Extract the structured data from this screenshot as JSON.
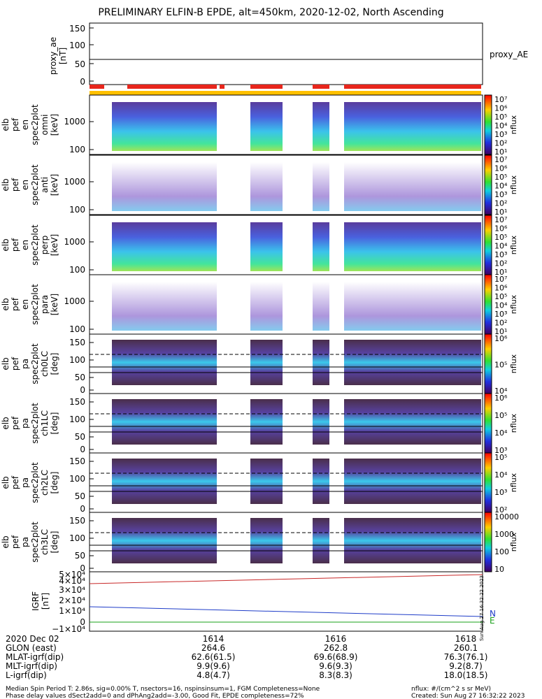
{
  "title": "PRELIMINARY ELFIN-B EPDE, alt=450km, 2020-12-02, North Ascending",
  "colors": {
    "frame": "#000000",
    "red_bar": "#e8261c",
    "yellow_bar": "#ffc000",
    "N_line": "#1e3cc8",
    "E_line": "#1aa01a",
    "R_line": "#c82828",
    "white": "#ffffff"
  },
  "proxy_ae": {
    "ylabel": "proxy_ae\n[nT]",
    "yticks": [
      "150",
      "100",
      "50",
      "0"
    ],
    "legend": "proxy_AE",
    "value": 60
  },
  "panels": [
    {
      "ylabel_lines": [
        "elb",
        "pef",
        "en",
        "spec2plot",
        "omni",
        "[keV]"
      ],
      "yticks": [
        "1000",
        "100"
      ],
      "cbar_ticks": [
        "10⁷",
        "10⁶",
        "10⁵",
        "10⁴",
        "10³",
        "10²",
        "10¹"
      ],
      "cbar_label": "nflux"
    },
    {
      "ylabel_lines": [
        "elb",
        "pef",
        "en",
        "spec2plot",
        "anti",
        "[keV]"
      ],
      "yticks": [
        "1000",
        "100"
      ],
      "cbar_ticks": [
        "10⁷",
        "10⁶",
        "10⁵",
        "10⁴",
        "10³",
        "10²",
        "10¹"
      ],
      "cbar_label": "nflux"
    },
    {
      "ylabel_lines": [
        "elb",
        "pef",
        "en",
        "spec2plot",
        "perp",
        "[keV]"
      ],
      "yticks": [
        "1000",
        "100"
      ],
      "cbar_ticks": [
        "10⁷",
        "10⁶",
        "10⁵",
        "10⁴",
        "10³",
        "10²",
        "10¹"
      ],
      "cbar_label": "nflux"
    },
    {
      "ylabel_lines": [
        "elb",
        "pef",
        "en",
        "spec2plot",
        "para",
        "[keV]"
      ],
      "yticks": [
        "1000",
        "100"
      ],
      "cbar_ticks": [
        "10⁷",
        "10⁶",
        "10⁵",
        "10⁴",
        "10³",
        "10²",
        "10¹"
      ],
      "cbar_label": "nflux"
    },
    {
      "ylabel_lines": [
        "elb",
        "pef",
        "pa",
        "spec2plot",
        "ch0LC",
        "[deg]"
      ],
      "yticks": [
        "150",
        "100",
        "50",
        "0"
      ],
      "cbar_ticks": [
        "10⁶",
        "10⁵",
        "10⁴"
      ],
      "cbar_label": "nflux"
    },
    {
      "ylabel_lines": [
        "elb",
        "pef",
        "pa",
        "spec2plot",
        "ch1LC",
        "[deg]"
      ],
      "yticks": [
        "150",
        "100",
        "50",
        "0"
      ],
      "cbar_ticks": [
        "10⁶",
        "10⁵",
        "10⁴",
        "10³"
      ],
      "cbar_label": "nflux"
    },
    {
      "ylabel_lines": [
        "elb",
        "pef",
        "pa",
        "spec2plot",
        "ch2LC",
        "[deg]"
      ],
      "yticks": [
        "150",
        "100",
        "50",
        "0"
      ],
      "cbar_ticks": [
        "10⁵",
        "10⁴",
        "10³",
        "10²"
      ],
      "cbar_label": "nflux"
    },
    {
      "ylabel_lines": [
        "elb",
        "pef",
        "pa",
        "spec2plot",
        "ch3LC",
        "[deg]"
      ],
      "yticks": [
        "150",
        "100",
        "50",
        "0"
      ],
      "cbar_ticks": [
        "10000",
        "1000",
        "100",
        "10"
      ],
      "cbar_label": "nflux"
    }
  ],
  "igrf": {
    "ylabel": "IGRF\n[nT]",
    "yticks": [
      "5×10⁴",
      "4×10⁴",
      "3×10⁴",
      "2×10⁴",
      "1×10⁴",
      "0",
      "−1×10⁴"
    ],
    "legend": [
      "N",
      "E"
    ]
  },
  "footer": {
    "rows": [
      {
        "label": "2020 Dec 02",
        "v1": "1614",
        "v2": "1616",
        "v3": "1618"
      },
      {
        "label": "GLON (east)",
        "v1": "264.6",
        "v2": "262.8",
        "v3": "260.1"
      },
      {
        "label": "MLAT-igrf(dip)",
        "v1": "62.6(61.5)",
        "v2": "69.6(68.9)",
        "v3": "76.3(76.1)"
      },
      {
        "label": "MLT-igrf(dip)",
        "v1": "9.9(9.6)",
        "v2": "9.6(9.3)",
        "v3": "9.2(8.7)"
      },
      {
        "label": "L-igrf(dip)",
        "v1": "4.8(4.7)",
        "v2": "8.3(8.3)",
        "v3": "18.0(18.5)"
      }
    ],
    "note1": "Median Spin Period T: 2.86s, sig=0.00% T, nsectors=16, nspinsinsum=1, FGM Completeness=None",
    "note2": "Phase delay values dSect2add=0 and dPhAng2add=-3.00, Good Fit, EPDE completeness=72%",
    "units": "nflux: #/(cm^2 s sr MeV)",
    "created": "Created: Sun Aug 27 16:32:22 2023",
    "side_stamp": "Sun Aug 27 16:32:22 2023"
  },
  "chart_data": {
    "type": "heatmap",
    "title": "PRELIMINARY ELFIN-B EPDE, alt=450km, 2020-12-02, North Ascending",
    "x_tick_labels": [
      "1614",
      "1616",
      "1618"
    ],
    "series": [
      {
        "name": "proxy_AE",
        "values": [
          60
        ]
      }
    ],
    "panels": [
      "omni",
      "anti",
      "perp",
      "para",
      "ch0LC",
      "ch1LC",
      "ch2LC",
      "ch3LC",
      "IGRF"
    ],
    "igrf_legend": [
      "N",
      "E"
    ]
  }
}
